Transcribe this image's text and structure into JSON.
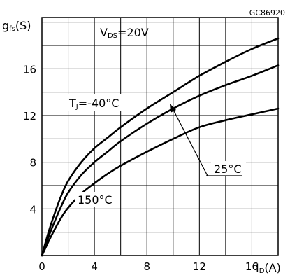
{
  "figure_code": "GC86920",
  "chart_data": {
    "type": "line",
    "title": "",
    "y_axis_label": {
      "symbol": "g",
      "sub": "fs",
      "unit": "(S)"
    },
    "x_axis_label": {
      "symbol": "I",
      "sub": "D",
      "unit": "(A)"
    },
    "xlim": [
      0,
      18
    ],
    "ylim": [
      0,
      20.4
    ],
    "x_ticks": [
      "0",
      "4",
      "8",
      "12",
      "16"
    ],
    "y_ticks": [
      "4",
      "8",
      "12",
      "16"
    ],
    "x_tick_values": [
      0,
      4,
      8,
      12,
      16
    ],
    "y_tick_values": [
      4,
      8,
      12,
      16
    ],
    "grid": true,
    "condition": {
      "prefix": "V",
      "sub": "DS",
      "suffix": "=20V"
    },
    "series": [
      {
        "name": "TJ=-40°C",
        "label": {
          "prefix": "T",
          "sub": "J",
          "suffix": "=-40°C"
        },
        "x": [
          0,
          0.5,
          1,
          1.5,
          2,
          3,
          4,
          5,
          6,
          8,
          10,
          12,
          14,
          16,
          18
        ],
        "y": [
          0,
          2.0,
          3.7,
          5.2,
          6.4,
          8.0,
          9.2,
          10.1,
          11.0,
          12.6,
          14.0,
          15.4,
          16.6,
          17.7,
          18.6
        ]
      },
      {
        "name": "25°C",
        "label": {
          "prefix": "",
          "sub": "",
          "suffix": "25°C"
        },
        "x": [
          0,
          0.5,
          1,
          1.5,
          2,
          3,
          4,
          5,
          6,
          8,
          10,
          12,
          14,
          16,
          18
        ],
        "y": [
          0,
          1.6,
          3.0,
          4.3,
          5.4,
          6.9,
          8.0,
          8.9,
          9.8,
          11.3,
          12.6,
          13.7,
          14.6,
          15.4,
          16.3
        ]
      },
      {
        "name": "150°C",
        "label": {
          "prefix": "",
          "sub": "",
          "suffix": "150°C"
        },
        "x": [
          0,
          0.5,
          1,
          1.5,
          2,
          3,
          4,
          5,
          6,
          8,
          10,
          12,
          14,
          16,
          18
        ],
        "y": [
          0,
          1.2,
          2.3,
          3.3,
          4.1,
          5.3,
          6.2,
          7.0,
          7.7,
          8.9,
          10.0,
          11.0,
          11.6,
          12.1,
          12.6
        ]
      }
    ]
  }
}
